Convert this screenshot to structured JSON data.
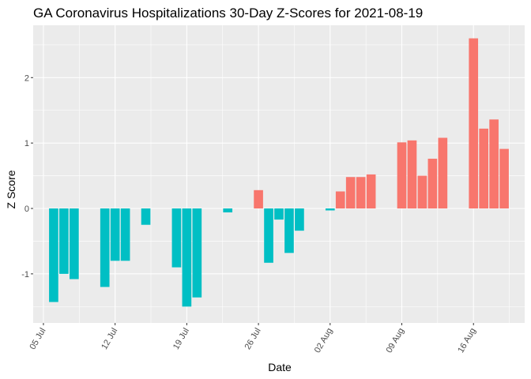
{
  "chart_data": {
    "type": "bar",
    "title": "GA Coronavirus Hospitalizations 30-Day Z-Scores for 2021-08-19",
    "xlabel": "Date",
    "ylabel": "Z Score",
    "x_ticks": [
      {
        "date": "2021-07-05",
        "label": "05 Jul"
      },
      {
        "date": "2021-07-12",
        "label": "12 Jul"
      },
      {
        "date": "2021-07-19",
        "label": "19 Jul"
      },
      {
        "date": "2021-07-26",
        "label": "26 Jul"
      },
      {
        "date": "2021-08-02",
        "label": "02 Aug"
      },
      {
        "date": "2021-08-09",
        "label": "09 Aug"
      },
      {
        "date": "2021-08-16",
        "label": "16 Aug"
      }
    ],
    "y_ticks": [
      -1,
      0,
      1,
      2
    ],
    "xlim": [
      "2021-07-04",
      "2021-08-21"
    ],
    "ylim": [
      -1.75,
      2.8
    ],
    "grid": true,
    "legend": "none",
    "colors": {
      "positive": "#F8766D",
      "negative": "#00BFC4"
    },
    "bars": [
      {
        "date": "2021-07-06",
        "value": -1.43
      },
      {
        "date": "2021-07-07",
        "value": -1.0
      },
      {
        "date": "2021-07-08",
        "value": -1.08
      },
      {
        "date": "2021-07-11",
        "value": -1.2
      },
      {
        "date": "2021-07-12",
        "value": -0.8
      },
      {
        "date": "2021-07-13",
        "value": -0.8
      },
      {
        "date": "2021-07-15",
        "value": -0.25
      },
      {
        "date": "2021-07-18",
        "value": -0.9
      },
      {
        "date": "2021-07-19",
        "value": -1.5
      },
      {
        "date": "2021-07-20",
        "value": -1.36
      },
      {
        "date": "2021-07-23",
        "value": -0.06
      },
      {
        "date": "2021-07-26",
        "value": 0.28
      },
      {
        "date": "2021-07-27",
        "value": -0.83
      },
      {
        "date": "2021-07-28",
        "value": -0.17
      },
      {
        "date": "2021-07-29",
        "value": -0.68
      },
      {
        "date": "2021-07-30",
        "value": -0.34
      },
      {
        "date": "2021-08-02",
        "value": -0.03
      },
      {
        "date": "2021-08-03",
        "value": 0.26
      },
      {
        "date": "2021-08-04",
        "value": 0.48
      },
      {
        "date": "2021-08-05",
        "value": 0.48
      },
      {
        "date": "2021-08-06",
        "value": 0.52
      },
      {
        "date": "2021-08-09",
        "value": 1.01
      },
      {
        "date": "2021-08-10",
        "value": 1.04
      },
      {
        "date": "2021-08-11",
        "value": 0.5
      },
      {
        "date": "2021-08-12",
        "value": 0.76
      },
      {
        "date": "2021-08-13",
        "value": 1.08
      },
      {
        "date": "2021-08-16",
        "value": 2.6
      },
      {
        "date": "2021-08-17",
        "value": 1.22
      },
      {
        "date": "2021-08-18",
        "value": 1.36
      },
      {
        "date": "2021-08-19",
        "value": 0.91
      }
    ]
  }
}
